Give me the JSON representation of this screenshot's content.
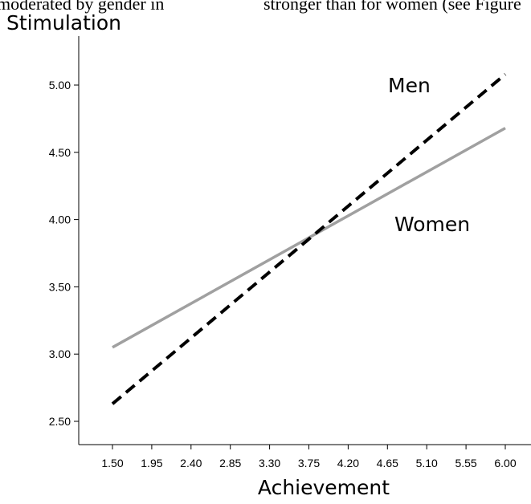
{
  "header_clip": {
    "left": "moderated by gender in",
    "right": "stronger than for women (see Figure"
  },
  "chart_data": {
    "type": "line",
    "title": "Stimulation",
    "xlabel": "Achievement",
    "ylabel": "Stimulation",
    "x_ticks": [
      "1.50",
      "1.95",
      "2.40",
      "2.85",
      "3.30",
      "3.75",
      "4.20",
      "4.65",
      "5.10",
      "5.55",
      "6.00"
    ],
    "y_ticks": [
      "2.50",
      "3.00",
      "3.50",
      "4.00",
      "4.50",
      "5.00"
    ],
    "xlim": [
      1.5,
      6.0
    ],
    "ylim": [
      2.5,
      5.0
    ],
    "grid": false,
    "series": [
      {
        "name": "Men",
        "x": [
          1.5,
          6.0
        ],
        "y": [
          2.63,
          5.08
        ],
        "color": "#000000",
        "style": "dashed"
      },
      {
        "name": "Women",
        "x": [
          1.5,
          6.0
        ],
        "y": [
          3.05,
          4.68
        ],
        "color": "#a0a0a0",
        "style": "solid"
      }
    ]
  }
}
